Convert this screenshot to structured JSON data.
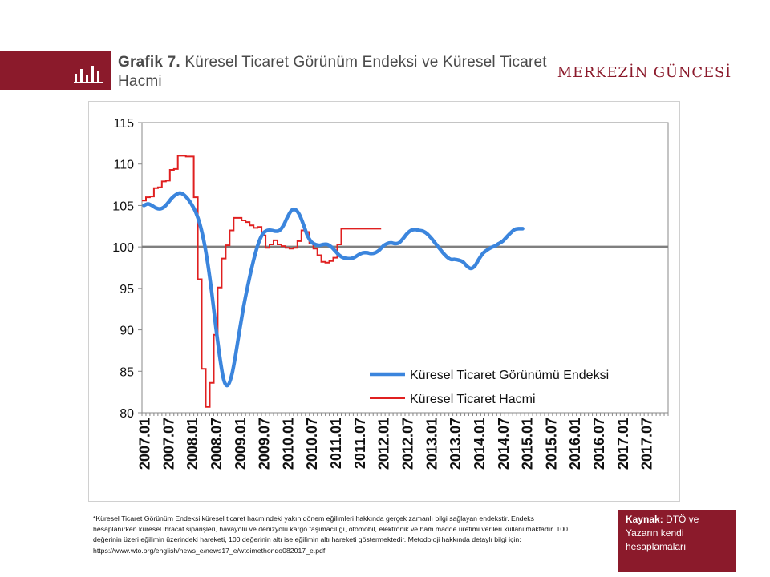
{
  "header": {
    "title_prefix": "Grafik 7.",
    "title_text": " Küresel Ticaret Görünüm Endeksi ve Küresel Ticaret Hacmi",
    "brand": "MERKEZİN GÜNCESİ",
    "accent_color": "#8b1a2b",
    "icon": "bar-chart-icon"
  },
  "chart_data": {
    "type": "line",
    "ylim": [
      80,
      115
    ],
    "yticks": [
      80,
      85,
      90,
      95,
      100,
      105,
      110,
      115
    ],
    "x_start": "2007.01",
    "x_end": "2017.12",
    "xticks": [
      "2007.01",
      "2007.07",
      "2008.01",
      "2008.07",
      "2009.01",
      "2009.07",
      "2010.01",
      "2010.07",
      "2011.01",
      "2011.07",
      "2012.01",
      "2012.07",
      "2013.01",
      "2013.07",
      "2014.01",
      "2014.07",
      "2015.01",
      "2015.07",
      "2016.01",
      "2016.07",
      "2017.01",
      "2017.07"
    ],
    "grid": false,
    "legend_position": "lower-right",
    "reference_line": 100,
    "series": [
      {
        "name": "Küresel Ticaret Görünümü Endeksi",
        "color": "#3b85dd",
        "points": [
          [
            "2007.01",
            105.0
          ],
          [
            "2007.02",
            105.2
          ],
          [
            "2007.03",
            105.0
          ],
          [
            "2007.04",
            104.7
          ],
          [
            "2007.05",
            104.6
          ],
          [
            "2007.06",
            104.8
          ],
          [
            "2007.07",
            105.3
          ],
          [
            "2007.08",
            105.9
          ],
          [
            "2007.09",
            106.3
          ],
          [
            "2007.10",
            106.5
          ],
          [
            "2007.11",
            106.3
          ],
          [
            "2007.12",
            105.8
          ],
          [
            "2008.01",
            105.1
          ],
          [
            "2008.02",
            104.2
          ],
          [
            "2008.03",
            102.8
          ],
          [
            "2008.04",
            100.8
          ],
          [
            "2008.05",
            98.0
          ],
          [
            "2008.06",
            94.5
          ],
          [
            "2008.07",
            90.5
          ],
          [
            "2008.08",
            86.8
          ],
          [
            "2008.09",
            84.0
          ],
          [
            "2008.10",
            83.3
          ],
          [
            "2008.11",
            84.5
          ],
          [
            "2008.12",
            87.0
          ],
          [
            "2009.01",
            90.0
          ],
          [
            "2009.02",
            92.8
          ],
          [
            "2009.03",
            95.2
          ],
          [
            "2009.04",
            97.4
          ],
          [
            "2009.05",
            99.3
          ],
          [
            "2009.06",
            100.8
          ],
          [
            "2009.07",
            101.7
          ],
          [
            "2009.08",
            102.0
          ],
          [
            "2009.09",
            102.0
          ],
          [
            "2009.10",
            101.9
          ],
          [
            "2009.11",
            102.0
          ],
          [
            "2009.12",
            102.6
          ],
          [
            "2010.01",
            103.6
          ],
          [
            "2010.02",
            104.4
          ],
          [
            "2010.03",
            104.5
          ],
          [
            "2010.04",
            103.9
          ],
          [
            "2010.05",
            102.7
          ],
          [
            "2010.06",
            101.4
          ],
          [
            "2010.07",
            100.6
          ],
          [
            "2010.08",
            100.3
          ],
          [
            "2010.09",
            100.2
          ],
          [
            "2010.10",
            100.3
          ],
          [
            "2010.11",
            100.3
          ],
          [
            "2010.12",
            100.0
          ],
          [
            "2011.01",
            99.5
          ],
          [
            "2011.02",
            99.0
          ],
          [
            "2011.03",
            98.7
          ],
          [
            "2011.04",
            98.6
          ],
          [
            "2011.05",
            98.6
          ],
          [
            "2011.06",
            98.8
          ],
          [
            "2011.07",
            99.1
          ],
          [
            "2011.08",
            99.3
          ],
          [
            "2011.09",
            99.3
          ],
          [
            "2011.10",
            99.2
          ],
          [
            "2011.11",
            99.3
          ],
          [
            "2011.12",
            99.6
          ],
          [
            "2012.01",
            100.1
          ],
          [
            "2012.02",
            100.4
          ],
          [
            "2012.03",
            100.5
          ],
          [
            "2012.04",
            100.4
          ],
          [
            "2012.05",
            100.5
          ],
          [
            "2012.06",
            101.0
          ],
          [
            "2012.07",
            101.6
          ],
          [
            "2012.08",
            102.0
          ],
          [
            "2012.09",
            102.1
          ],
          [
            "2012.10",
            102.0
          ],
          [
            "2012.11",
            101.9
          ],
          [
            "2012.12",
            101.6
          ],
          [
            "2013.01",
            101.1
          ],
          [
            "2013.02",
            100.5
          ],
          [
            "2013.03",
            99.9
          ],
          [
            "2013.04",
            99.3
          ],
          [
            "2013.05",
            98.8
          ],
          [
            "2013.06",
            98.5
          ],
          [
            "2013.07",
            98.5
          ],
          [
            "2013.08",
            98.4
          ],
          [
            "2013.09",
            98.2
          ],
          [
            "2013.10",
            97.7
          ],
          [
            "2013.11",
            97.4
          ],
          [
            "2013.12",
            97.7
          ],
          [
            "2014.01",
            98.5
          ],
          [
            "2014.02",
            99.2
          ],
          [
            "2014.03",
            99.6
          ],
          [
            "2014.04",
            99.9
          ],
          [
            "2014.05",
            100.1
          ],
          [
            "2014.06",
            100.4
          ],
          [
            "2014.07",
            100.7
          ],
          [
            "2014.08",
            101.2
          ],
          [
            "2014.09",
            101.7
          ],
          [
            "2014.10",
            102.1
          ],
          [
            "2014.11",
            102.2
          ],
          [
            "2014.12",
            102.2
          ]
        ]
      },
      {
        "name": "Küresel Ticaret Hacmi",
        "color": "#e02020",
        "points": [
          [
            "2007.01",
            105.6
          ],
          [
            "2007.02",
            106.0
          ],
          [
            "2007.03",
            106.1
          ],
          [
            "2007.04",
            107.1
          ],
          [
            "2007.05",
            107.2
          ],
          [
            "2007.06",
            107.9
          ],
          [
            "2007.07",
            108.0
          ],
          [
            "2007.08",
            109.3
          ],
          [
            "2007.09",
            109.4
          ],
          [
            "2007.10",
            111.0
          ],
          [
            "2007.11",
            111.0
          ],
          [
            "2007.12",
            110.9
          ],
          [
            "2008.01",
            110.9
          ],
          [
            "2008.02",
            106.0
          ],
          [
            "2008.03",
            96.1
          ],
          [
            "2008.04",
            85.3
          ],
          [
            "2008.05",
            80.7
          ],
          [
            "2008.06",
            83.6
          ],
          [
            "2008.07",
            89.4
          ],
          [
            "2008.08",
            95.1
          ],
          [
            "2008.09",
            98.6
          ],
          [
            "2008.10",
            100.2
          ],
          [
            "2008.11",
            102.0
          ],
          [
            "2008.12",
            103.5
          ],
          [
            "2009.01",
            103.5
          ],
          [
            "2009.02",
            103.2
          ],
          [
            "2009.03",
            103.0
          ],
          [
            "2009.04",
            102.6
          ],
          [
            "2009.05",
            102.3
          ],
          [
            "2009.06",
            102.4
          ],
          [
            "2009.07",
            101.4
          ],
          [
            "2009.08",
            99.9
          ],
          [
            "2009.09",
            100.3
          ],
          [
            "2009.10",
            100.8
          ],
          [
            "2009.11",
            100.3
          ],
          [
            "2009.12",
            100.1
          ],
          [
            "2010.01",
            99.9
          ],
          [
            "2010.02",
            99.8
          ],
          [
            "2010.03",
            99.9
          ],
          [
            "2010.04",
            100.7
          ],
          [
            "2010.05",
            102.0
          ],
          [
            "2010.06",
            101.8
          ],
          [
            "2010.07",
            100.5
          ],
          [
            "2010.08",
            99.8
          ],
          [
            "2010.09",
            99.0
          ],
          [
            "2010.10",
            98.2
          ],
          [
            "2010.11",
            98.1
          ],
          [
            "2010.12",
            98.3
          ],
          [
            "2011.01",
            98.7
          ],
          [
            "2011.02",
            100.3
          ],
          [
            "2011.03",
            102.2
          ],
          [
            "2011.04",
            102.2
          ],
          [
            "2011.05",
            102.2
          ],
          [
            "2011.06",
            102.2
          ],
          [
            "2011.07",
            102.2
          ],
          [
            "2011.08",
            102.2
          ],
          [
            "2011.09",
            102.2
          ],
          [
            "2011.10",
            102.2
          ],
          [
            "2011.11",
            102.2
          ],
          [
            "2011.12",
            102.2
          ]
        ]
      }
    ]
  },
  "footnote": "*Küresel Ticaret Görünüm Endeksi küresel ticaret hacmindeki yakın dönem eğilimleri hakkında gerçek zamanlı bilgi sağlayan endekstir. Endeks hesaplanırken küresel ihracat siparişleri, havayolu ve denizyolu kargo taşımacılığı, otomobil, elektronik ve ham madde üretimi verileri kullanılmaktadır. 100 değerinin üzeri eğilimin üzerindeki hareketi, 100 değerinin altı ise eğilimin altı hareketi göstermektedir. Metodoloji hakkında detaylı bilgi için: https://www.wto.org/english/news_e/news17_e/wtoimethondo082017_e.pdf",
  "source": {
    "label": "Kaynak:",
    "text": " DTÖ ve Yazarın kendi hesaplamaları"
  }
}
